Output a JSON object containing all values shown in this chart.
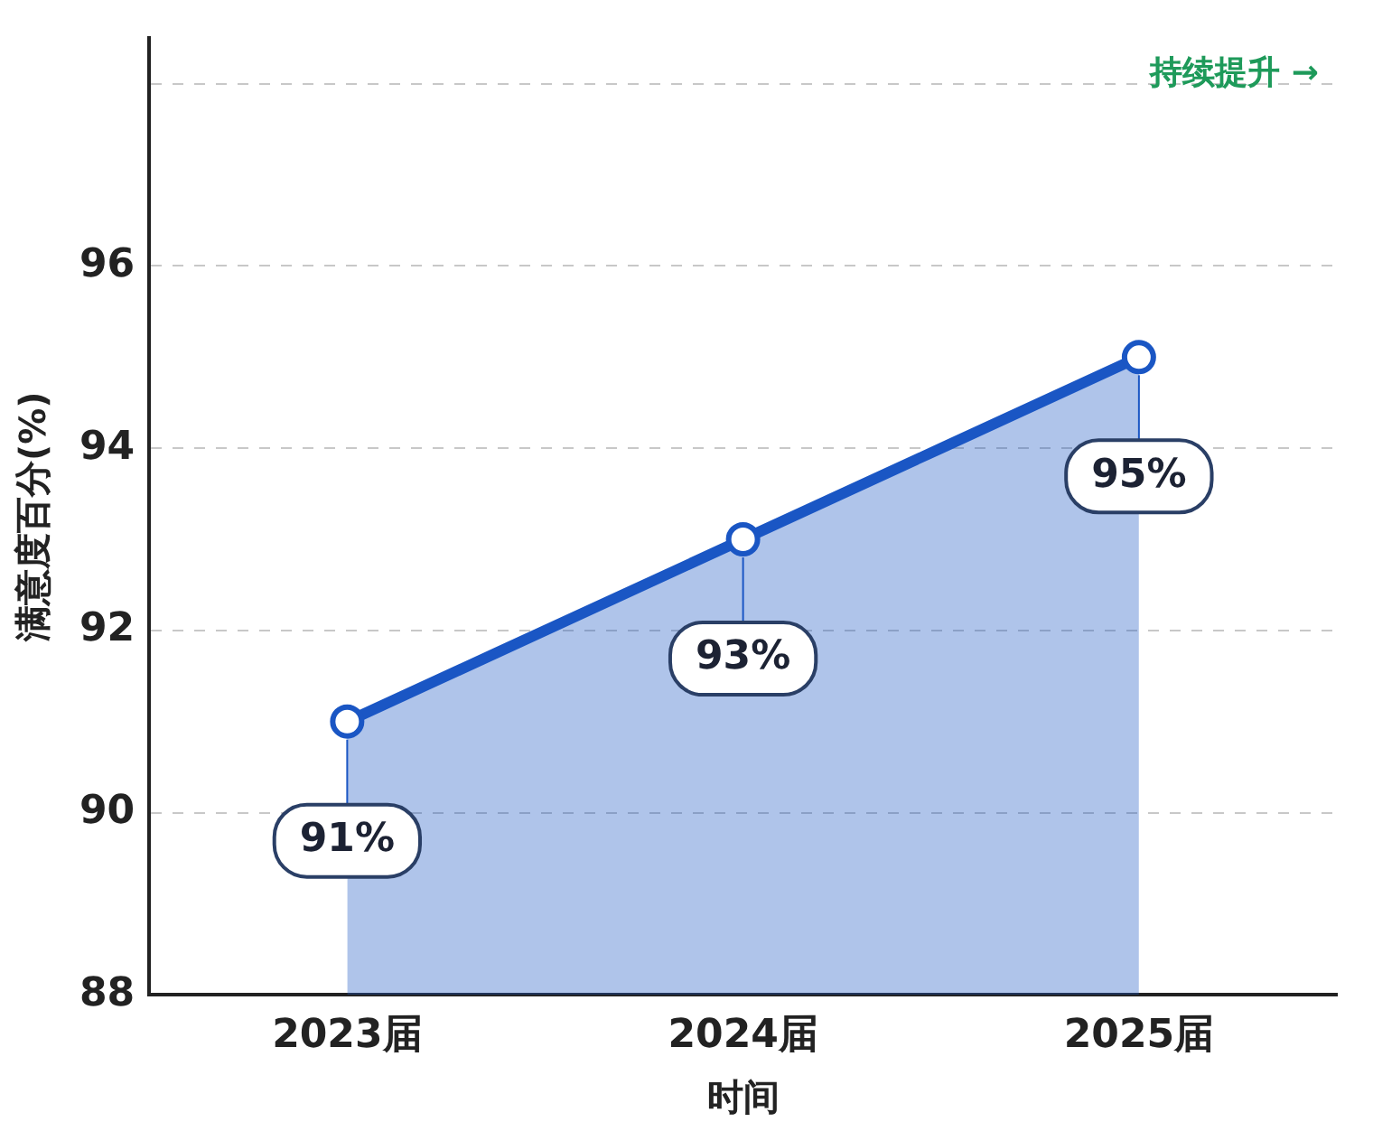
{
  "chart_data": {
    "type": "area",
    "xlabel": "时间",
    "ylabel": "满意度百分(%)",
    "categories": [
      "2023届",
      "2024届",
      "2025届"
    ],
    "values": [
      91,
      93,
      95
    ],
    "color": "#1a56c4",
    "ylim": [
      88,
      98.5
    ],
    "yticks": [
      88,
      90,
      92,
      94,
      96,
      {
        "value": 98,
        "label": null
      }
    ],
    "grid": "y",
    "line_style": "solid",
    "marker": "circle",
    "data_labels": true,
    "value_labels": [
      "91%",
      "93%",
      "95%"
    ],
    "annotations": [
      "持续提升 →"
    ]
  }
}
